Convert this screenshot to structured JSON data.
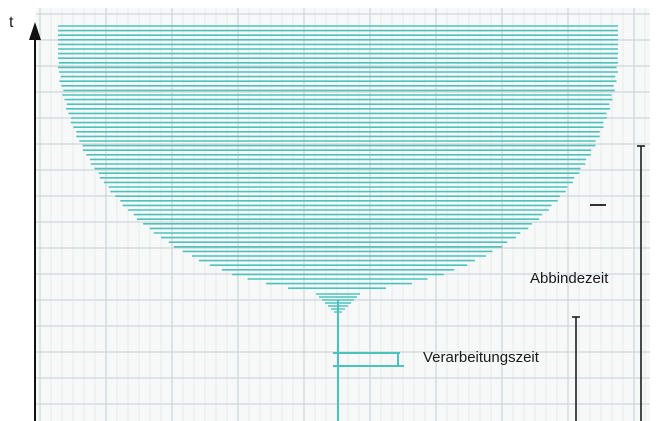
{
  "axis": {
    "label": "t"
  },
  "annotations": {
    "setting_time": "Abbindezeit",
    "working_time": "Verarbeitungszeit"
  },
  "colors": {
    "trace": "#4cc2bd",
    "grid_minor": "#dfe6e8",
    "grid_major": "#c6d0d3",
    "ink": "#111111",
    "paper": "#f7f8f8"
  }
}
